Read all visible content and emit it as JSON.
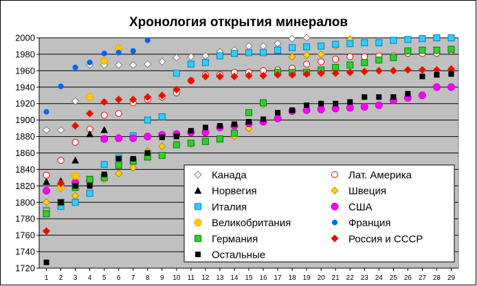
{
  "chart_data": {
    "type": "scatter",
    "title": "Хронология открытия минералов",
    "xlabel": "",
    "ylabel": "",
    "x": [
      1,
      2,
      3,
      4,
      5,
      6,
      7,
      8,
      9,
      10,
      11,
      12,
      13,
      14,
      15,
      16,
      17,
      18,
      19,
      20,
      21,
      22,
      23,
      24,
      25,
      26,
      27,
      28,
      29
    ],
    "xlim": [
      1,
      29
    ],
    "ylim": [
      1720,
      2000
    ],
    "yticks": [
      1720,
      1740,
      1760,
      1780,
      1800,
      1820,
      1840,
      1860,
      1880,
      1900,
      1920,
      1940,
      1960,
      1980,
      2000
    ],
    "plot_background": "#c0c0c0",
    "grid": "horizontal",
    "legend": "bottom-right",
    "series": [
      {
        "name": "Канада",
        "marker": "diamond",
        "color": "#ffffff",
        "stroke": "#808080",
        "x": [
          1,
          2,
          3,
          4,
          5,
          6,
          7,
          8,
          9,
          10,
          11,
          12,
          13,
          14,
          15,
          16,
          17,
          18,
          19
        ],
        "values": [
          1888,
          1888,
          1923,
          1967,
          1967,
          1967,
          1967,
          1968,
          1971,
          1976,
          1977,
          1978,
          1983,
          1985,
          1990,
          1990,
          1993,
          1999,
          2000
        ]
      },
      {
        "name": "Лат. Америка",
        "marker": "circle-open",
        "color": "#ffffff",
        "stroke": "#ff0000",
        "x": [
          1,
          2,
          3,
          4,
          5,
          6,
          7,
          8,
          9,
          10,
          11,
          12,
          13,
          14,
          15,
          16,
          17,
          18,
          19,
          20,
          21,
          22,
          23,
          24,
          25,
          26,
          27,
          28,
          29
        ],
        "values": [
          1833,
          1851,
          1873,
          1889,
          1906,
          1908,
          1921,
          1925,
          1928,
          1933,
          1948,
          1955,
          1955,
          1958,
          1958,
          1960,
          1961,
          1963,
          1968,
          1971,
          1974,
          1977,
          1977,
          1978,
          1978,
          1981,
          1981,
          1981,
          1984
        ]
      },
      {
        "name": "Норвегия",
        "marker": "triangle",
        "color": "#000000",
        "stroke": "#000000",
        "x": [
          1,
          2,
          3,
          4,
          5
        ],
        "values": [
          1825,
          1826,
          1851,
          1883,
          1888
        ]
      },
      {
        "name": "Швеция",
        "marker": "diamond",
        "color": "#ffd700",
        "stroke": "#b8860b",
        "x": [
          1,
          2,
          3,
          4,
          5,
          6,
          7,
          8,
          9,
          10,
          11,
          12,
          13,
          14,
          15,
          16,
          17,
          18,
          19,
          20,
          21,
          22
        ],
        "values": [
          1800,
          1817,
          1808,
          1822,
          1828,
          1835,
          1842,
          1862,
          1868,
          1870,
          1871,
          1874,
          1877,
          1880,
          1890,
          1919,
          1957,
          1977,
          1979,
          1980,
          1990,
          1998
        ]
      },
      {
        "name": "Италия",
        "marker": "square",
        "color": "#33ccff",
        "stroke": "#0080c0",
        "x": [
          1,
          2,
          3,
          4,
          5,
          6,
          7,
          8,
          9,
          10,
          11,
          12,
          13,
          14,
          15,
          16,
          17,
          18,
          19,
          20,
          21,
          22,
          23,
          24,
          25,
          26,
          27,
          28,
          29
        ],
        "values": [
          1790,
          1795,
          1800,
          1811,
          1846,
          1854,
          1881,
          1900,
          1904,
          1957,
          1968,
          1970,
          1978,
          1981,
          1982,
          1982,
          1985,
          1988,
          1989,
          1990,
          1992,
          1993,
          1994,
          1994,
          1997,
          1998,
          1999,
          2000,
          2000
        ]
      },
      {
        "name": "США",
        "marker": "circle",
        "color": "#ff00ff",
        "stroke": "#c000c0",
        "x": [
          1,
          2,
          3,
          4,
          5,
          6,
          7,
          8,
          9,
          10,
          11,
          12,
          13,
          14,
          15,
          16,
          17,
          18,
          19,
          20,
          21,
          22,
          23,
          24,
          25,
          26,
          27,
          28,
          29
        ],
        "values": [
          1814,
          1820,
          1824,
          1826,
          1877,
          1878,
          1878,
          1880,
          1882,
          1883,
          1885,
          1885,
          1891,
          1893,
          1896,
          1898,
          1902,
          1911,
          1912,
          1913,
          1914,
          1915,
          1916,
          1918,
          1924,
          1927,
          1930,
          1940,
          1940
        ]
      },
      {
        "name": "Великобритания",
        "marker": "circle",
        "color": "#ffcc00",
        "stroke": "#ff9900",
        "x": [
          1,
          2,
          3,
          4,
          5,
          6
        ],
        "values": [
          1788,
          1818,
          1832,
          1928,
          1972,
          1987
        ]
      },
      {
        "name": "Франция",
        "marker": "dot",
        "color": "#0066ff",
        "stroke": "#0066ff",
        "x": [
          1,
          2,
          3,
          4,
          5,
          6,
          7,
          8
        ],
        "values": [
          1910,
          1941,
          1964,
          1970,
          1981,
          1982,
          1984,
          1997
        ]
      },
      {
        "name": "Германия",
        "marker": "square",
        "color": "#33cc33",
        "stroke": "#008000",
        "x": [
          1,
          2,
          3,
          4,
          5,
          6,
          7,
          8,
          9,
          10,
          11,
          12,
          13,
          14,
          15,
          16,
          17,
          18,
          19,
          20,
          21,
          22,
          23,
          24,
          25,
          26,
          27,
          28,
          29
        ],
        "values": [
          1786,
          1800,
          1818,
          1828,
          1830,
          1845,
          1850,
          1855,
          1857,
          1870,
          1872,
          1874,
          1877,
          1884,
          1909,
          1921,
          1958,
          1958,
          1958,
          1961,
          1964,
          1967,
          1970,
          1973,
          1976,
          1984,
          1985,
          1985,
          1986
        ]
      },
      {
        "name": "Россия и СССР",
        "marker": "diamond",
        "color": "#ff0000",
        "stroke": "#cc3300",
        "x": [
          1,
          2,
          3,
          4,
          5,
          6,
          7,
          8,
          9,
          10,
          11,
          12,
          13,
          14,
          15,
          16,
          17,
          18,
          19,
          20,
          21,
          22,
          23,
          24,
          25,
          26,
          27,
          28,
          29
        ],
        "values": [
          1765,
          1823,
          1893,
          1908,
          1922,
          1925,
          1925,
          1928,
          1930,
          1937,
          1948,
          1953,
          1953,
          1953,
          1954,
          1954,
          1955,
          1955,
          1956,
          1957,
          1957,
          1958,
          1959,
          1960,
          1960,
          1961,
          1961,
          1961,
          1962
        ]
      },
      {
        "name": "Остальные",
        "marker": "square-small",
        "color": "#000000",
        "stroke": "#000000",
        "x": [
          1,
          2,
          3,
          4,
          5,
          6,
          7,
          8,
          9,
          10,
          11,
          12,
          13,
          14,
          15,
          16,
          17,
          18,
          19,
          20,
          21,
          22,
          23,
          24,
          25,
          26,
          27,
          28,
          29
        ],
        "values": [
          1727,
          1800,
          1820,
          1820,
          1834,
          1853,
          1853,
          1860,
          1879,
          1880,
          1887,
          1891,
          1893,
          1895,
          1898,
          1901,
          1909,
          1912,
          1918,
          1920,
          1920,
          1922,
          1928,
          1928,
          1928,
          1932,
          1953,
          1955,
          1956
        ]
      }
    ]
  }
}
